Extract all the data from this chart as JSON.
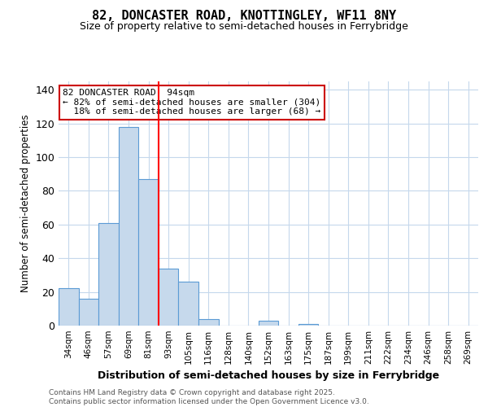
{
  "title1": "82, DONCASTER ROAD, KNOTTINGLEY, WF11 8NY",
  "title2": "Size of property relative to semi-detached houses in Ferrybridge",
  "xlabel": "Distribution of semi-detached houses by size in Ferrybridge",
  "ylabel": "Number of semi-detached properties",
  "categories": [
    "34sqm",
    "46sqm",
    "57sqm",
    "69sqm",
    "81sqm",
    "93sqm",
    "105sqm",
    "116sqm",
    "128sqm",
    "140sqm",
    "152sqm",
    "163sqm",
    "175sqm",
    "187sqm",
    "199sqm",
    "211sqm",
    "222sqm",
    "234sqm",
    "246sqm",
    "258sqm",
    "269sqm"
  ],
  "values": [
    22,
    16,
    61,
    118,
    87,
    34,
    26,
    4,
    0,
    0,
    3,
    0,
    1,
    0,
    0,
    0,
    0,
    0,
    0,
    0,
    0
  ],
  "bar_color": "#c6d9ec",
  "bar_edge_color": "#5b9bd5",
  "red_line_index": 5,
  "property_label": "82 DONCASTER ROAD: 94sqm",
  "pct_smaller": 82,
  "pct_smaller_count": 304,
  "pct_larger": 18,
  "pct_larger_count": 68,
  "ylim": [
    0,
    145
  ],
  "yticks": [
    0,
    20,
    40,
    60,
    80,
    100,
    120,
    140
  ],
  "annotation_box_color": "#ffffff",
  "annotation_box_edge_color": "#cc0000",
  "footer": "Contains HM Land Registry data © Crown copyright and database right 2025.\nContains public sector information licensed under the Open Government Licence v3.0.",
  "bg_color": "#ffffff",
  "grid_color": "#c5d8ec"
}
